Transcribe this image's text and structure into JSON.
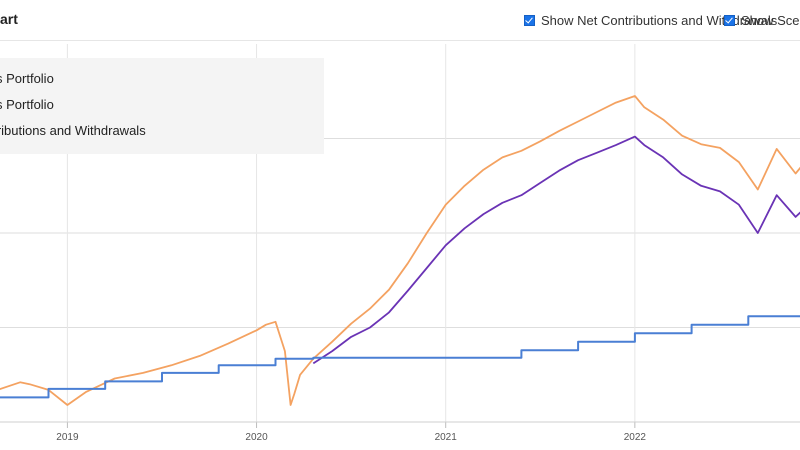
{
  "header": {
    "title": "art",
    "options": [
      {
        "label": "Show Net Contributions and Withdrawals",
        "checked": true
      },
      {
        "label": "Show Scenario",
        "checked": true
      }
    ]
  },
  "legend": {
    "items": [
      {
        "label": "s Portfolio",
        "color": "#f4a261"
      },
      {
        "label": "s Portfolio",
        "color": "#6a33b5"
      },
      {
        "label": "ntributions and Withdrawals",
        "color": "#4a7fd4"
      }
    ]
  },
  "colors": {
    "portfolio_orange": "#f4a261",
    "portfolio_purple": "#6a33b5",
    "contributions_blue": "#4a7fd4",
    "checkbox": "#1a73e8"
  },
  "chart_data": {
    "type": "line",
    "x_tick_labels": [
      "2019",
      "2020",
      "2021",
      "2022"
    ],
    "xlim": [
      2018.3,
      2023.0
    ],
    "ylim": [
      0,
      40
    ],
    "grid": true,
    "series": [
      {
        "color": "#f4a261",
        "x": [
          2018.3,
          2018.45,
          2018.6,
          2018.75,
          2018.8,
          2018.9,
          2019.0,
          2019.1,
          2019.25,
          2019.4,
          2019.55,
          2019.7,
          2019.85,
          2020.0,
          2020.05,
          2020.1,
          2020.15,
          2020.18,
          2020.2,
          2020.23,
          2020.3,
          2020.4,
          2020.5,
          2020.6,
          2020.7,
          2020.8,
          2020.9,
          2021.0,
          2021.1,
          2021.2,
          2021.3,
          2021.4,
          2021.5,
          2021.6,
          2021.7,
          2021.8,
          2021.9,
          2022.0,
          2022.05,
          2022.15,
          2022.25,
          2022.35,
          2022.45,
          2022.55,
          2022.65,
          2022.75,
          2022.85,
          2022.95,
          2023.0
        ],
        "values": [
          1.6,
          2.5,
          3.2,
          4.2,
          4.0,
          3.4,
          1.8,
          3.2,
          4.6,
          5.2,
          6.0,
          7.0,
          8.3,
          9.7,
          10.3,
          10.6,
          7.5,
          1.8,
          3.0,
          5.0,
          6.7,
          8.5,
          10.4,
          12.0,
          14.0,
          16.8,
          20.0,
          23.0,
          25.0,
          26.7,
          28.0,
          28.7,
          29.7,
          30.8,
          31.8,
          32.8,
          33.8,
          34.5,
          33.3,
          32.0,
          30.3,
          29.4,
          29.0,
          27.5,
          24.6,
          28.9,
          26.3,
          28.7,
          27.8
        ]
      },
      {
        "color": "#6a33b5",
        "x": [
          2020.3,
          2020.4,
          2020.5,
          2020.6,
          2020.7,
          2020.8,
          2020.9,
          2021.0,
          2021.1,
          2021.2,
          2021.3,
          2021.4,
          2021.5,
          2021.6,
          2021.7,
          2021.8,
          2021.9,
          2022.0,
          2022.05,
          2022.15,
          2022.25,
          2022.35,
          2022.45,
          2022.55,
          2022.65,
          2022.75,
          2022.85,
          2022.95,
          2023.0
        ],
        "values": [
          6.2,
          7.5,
          9.0,
          10.0,
          11.6,
          13.9,
          16.3,
          18.7,
          20.5,
          22.0,
          23.2,
          24.0,
          25.3,
          26.6,
          27.7,
          28.5,
          29.3,
          30.2,
          29.3,
          28.0,
          26.2,
          25.0,
          24.4,
          23.0,
          20.0,
          24.0,
          21.7,
          23.6,
          22.9
        ]
      },
      {
        "color": "#4a7fd4",
        "x": [
          2018.3,
          2018.6,
          2018.9,
          2019.2,
          2019.5,
          2019.8,
          2020.1,
          2020.3,
          2020.6,
          2020.9,
          2021.1,
          2021.22,
          2021.4,
          2021.7,
          2022.0,
          2022.3,
          2022.6,
          2022.9,
          2023.0
        ],
        "values": [
          1.6,
          2.6,
          3.5,
          4.3,
          5.2,
          6.0,
          6.7,
          6.8,
          6.8,
          6.8,
          6.8,
          6.8,
          7.6,
          8.5,
          9.4,
          10.3,
          11.2,
          12.0,
          12.4
        ]
      }
    ]
  }
}
